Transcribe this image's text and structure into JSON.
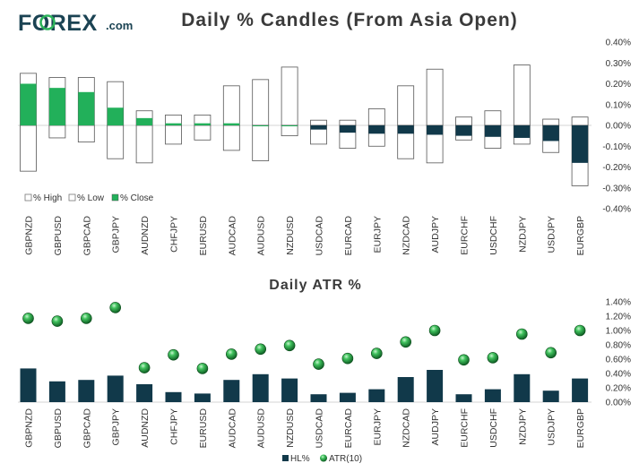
{
  "brand": {
    "name": "FOREX",
    "domain": ".com",
    "accent": "#2db35a",
    "navy": "#1b4353"
  },
  "chart_data": [
    {
      "type": "candlestick",
      "title": "Daily % Candles (From Asia Open)",
      "categories": [
        "GBPNZD",
        "GBPUSD",
        "GBPCAD",
        "GBPJPY",
        "AUDNZD",
        "CHFJPY",
        "EURUSD",
        "AUDCAD",
        "AUDUSD",
        "NZDUSD",
        "USDCAD",
        "EURCAD",
        "EURJPY",
        "NZDCAD",
        "AUDJPY",
        "EURCHF",
        "USDCHF",
        "NZDJPY",
        "USDJPY",
        "EURGBP"
      ],
      "series": [
        {
          "name": "% High",
          "values": [
            0.25,
            0.23,
            0.23,
            0.21,
            0.07,
            0.05,
            0.05,
            0.19,
            0.22,
            0.28,
            0.025,
            0.025,
            0.08,
            0.19,
            0.27,
            0.04,
            0.07,
            0.29,
            0.03,
            0.04
          ]
        },
        {
          "name": "% Low",
          "values": [
            -0.22,
            -0.06,
            -0.08,
            -0.16,
            -0.18,
            -0.09,
            -0.07,
            -0.12,
            -0.17,
            -0.05,
            -0.09,
            -0.11,
            -0.1,
            -0.16,
            -0.18,
            -0.07,
            -0.11,
            -0.09,
            -0.13,
            -0.29
          ]
        },
        {
          "name": "% Close",
          "values": [
            0.2,
            0.18,
            0.16,
            0.085,
            0.035,
            0.01,
            0.01,
            0.01,
            0.0,
            0.0,
            -0.02,
            -0.035,
            -0.04,
            -0.04,
            -0.045,
            -0.05,
            -0.055,
            -0.06,
            -0.075,
            -0.18
          ]
        }
      ],
      "yticks": [
        "0.40%",
        "0.30%",
        "0.20%",
        "0.10%",
        "0.00%",
        "-0.10%",
        "-0.20%",
        "-0.30%",
        "-0.40%"
      ],
      "ylim": [
        -0.4,
        0.4
      ],
      "legend": [
        "% High",
        "% Low",
        "% Close"
      ],
      "colors": {
        "up": "#22b05a",
        "down": "#11394a",
        "outline": "#555555"
      }
    },
    {
      "type": "bar+scatter",
      "title": "Daily ATR %",
      "categories": [
        "GBPNZD",
        "GBPUSD",
        "GBPCAD",
        "GBPJPY",
        "AUDNZD",
        "CHFJPY",
        "EURUSD",
        "AUDCAD",
        "AUDUSD",
        "NZDUSD",
        "USDCAD",
        "EURCAD",
        "EURJPY",
        "NZDCAD",
        "AUDJPY",
        "EURCHF",
        "USDCHF",
        "NZDJPY",
        "USDJPY",
        "EURGBP"
      ],
      "series": [
        {
          "name": "HL%",
          "type": "bar",
          "values": [
            0.47,
            0.29,
            0.31,
            0.37,
            0.25,
            0.14,
            0.12,
            0.31,
            0.39,
            0.33,
            0.11,
            0.13,
            0.18,
            0.35,
            0.45,
            0.11,
            0.18,
            0.39,
            0.16,
            0.33
          ]
        },
        {
          "name": "ATR(10)",
          "type": "scatter",
          "values": [
            1.17,
            1.13,
            1.17,
            1.32,
            0.48,
            0.66,
            0.47,
            0.67,
            0.74,
            0.79,
            0.53,
            0.61,
            0.68,
            0.84,
            1.0,
            0.59,
            0.62,
            0.95,
            0.69,
            1.0
          ]
        }
      ],
      "yticks": [
        "1.40%",
        "1.20%",
        "1.00%",
        "0.80%",
        "0.60%",
        "0.40%",
        "0.20%",
        "0.00%"
      ],
      "ylim": [
        0,
        1.4
      ],
      "legend": [
        "HL%",
        "ATR(10)"
      ],
      "colors": {
        "bar": "#11394a",
        "dot": "#1f9e45"
      }
    }
  ]
}
